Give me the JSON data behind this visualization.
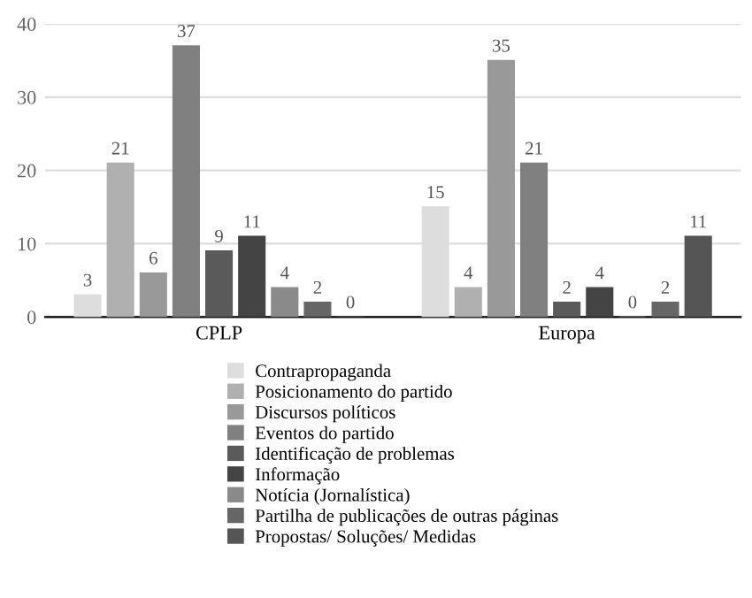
{
  "chart_data": {
    "type": "bar",
    "categories": [
      "CPLP",
      "Europa"
    ],
    "series": [
      {
        "name": "Contrapropaganda",
        "color": "#dddddd",
        "values": [
          3,
          15
        ]
      },
      {
        "name": "Posicionamento do partido",
        "color": "#b0b0b0",
        "values": [
          21,
          4
        ]
      },
      {
        "name": "Discursos políticos",
        "color": "#999999",
        "values": [
          6,
          35
        ]
      },
      {
        "name": "Eventos do partido",
        "color": "#808080",
        "values": [
          37,
          21
        ]
      },
      {
        "name": "Identificação de problemas",
        "color": "#5a5a5a",
        "values": [
          9,
          2
        ]
      },
      {
        "name": "Informação",
        "color": "#444444",
        "values": [
          11,
          4
        ]
      },
      {
        "name": "Notícia (Jornalística)",
        "color": "#8a8a8a",
        "values": [
          4,
          0
        ]
      },
      {
        "name": "Partilha de publicações de outras páginas",
        "color": "#666666",
        "values": [
          2,
          2
        ]
      },
      {
        "name": "Propostas/ Soluções/ Medidas",
        "color": "#555555",
        "values": [
          0,
          11
        ]
      }
    ],
    "ylim": [
      0,
      40
    ],
    "yticks": [
      0,
      10,
      20,
      30,
      40
    ],
    "grid": "y",
    "legend": "bottom",
    "data_labels": true
  }
}
